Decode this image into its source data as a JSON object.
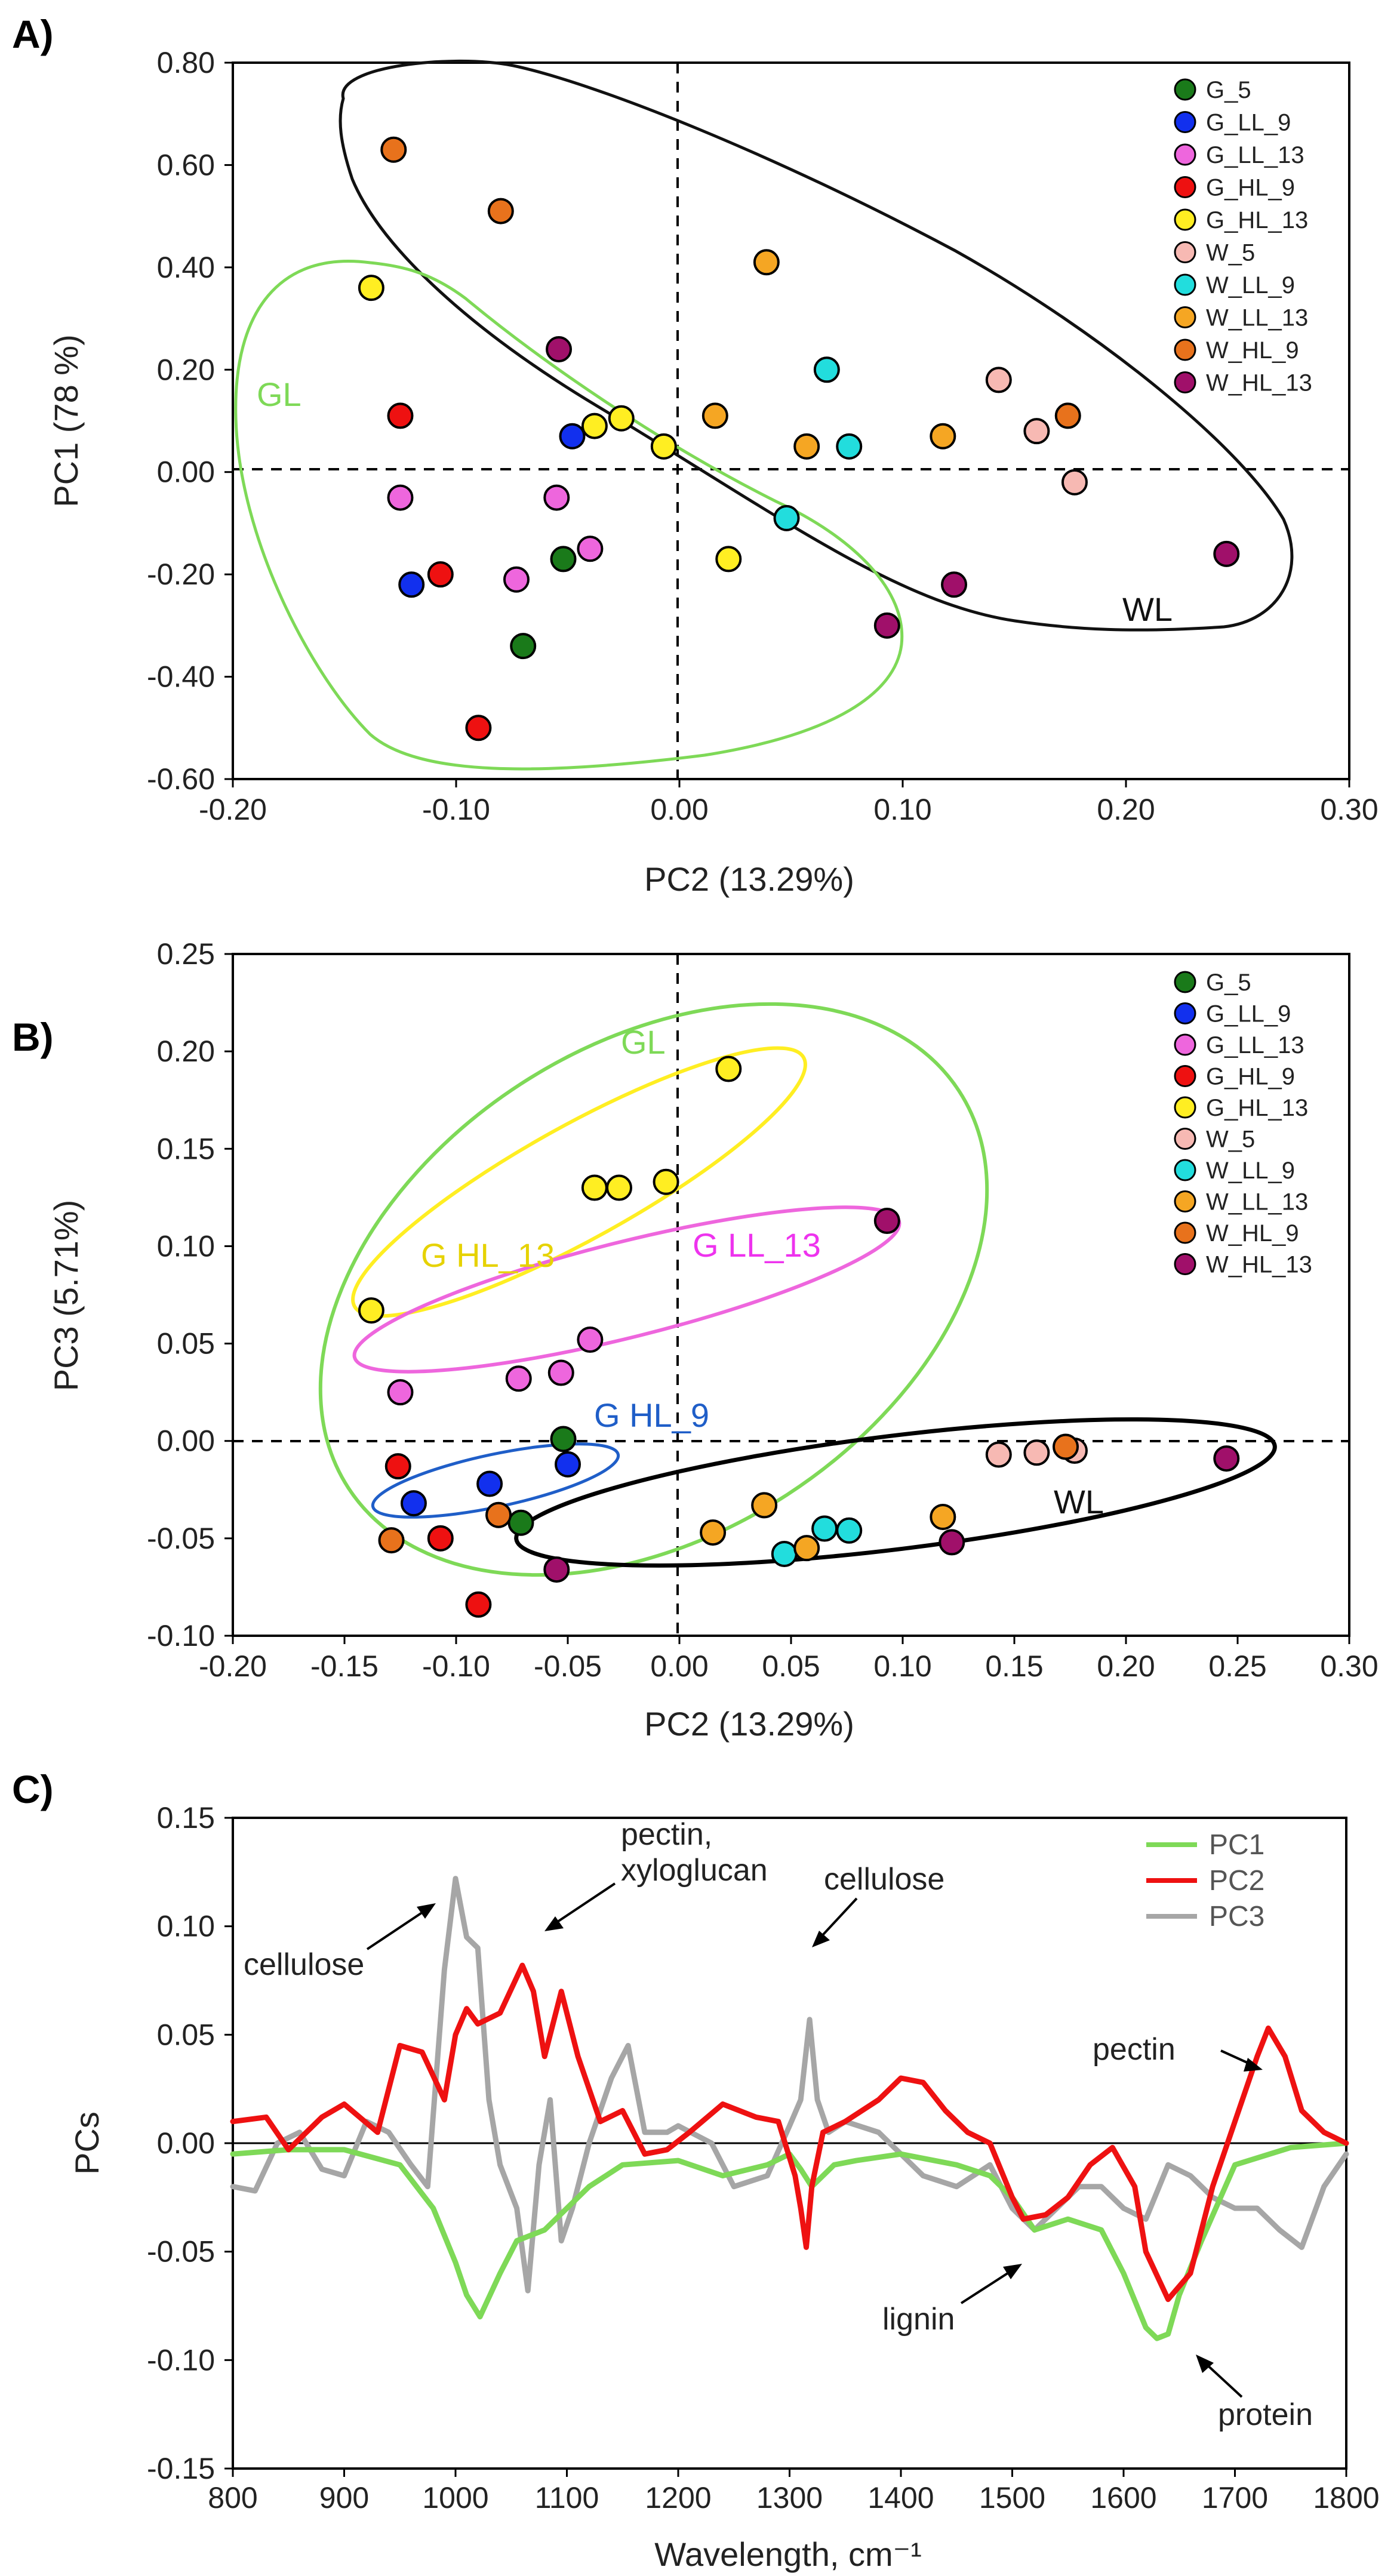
{
  "chart_data": [
    {
      "panel": "A)",
      "type": "scatter",
      "xlabel": "PC2 (13.29%)",
      "ylabel": "PC1 (78 %)",
      "xlim": [
        -0.2,
        0.3
      ],
      "ylim": [
        -0.6,
        0.8
      ],
      "xticks": [
        -0.2,
        -0.1,
        0.0,
        0.1,
        0.2,
        0.3
      ],
      "yticks": [
        -0.6,
        -0.4,
        -0.2,
        0.0,
        0.2,
        0.4,
        0.6,
        0.8
      ],
      "xtick_labels": [
        "-0.20",
        "-0.10",
        "0.00",
        "0.10",
        "0.20",
        "0.30"
      ],
      "ytick_labels": [
        "-0.60",
        "-0.40",
        "-0.20",
        "0.00",
        "0.20",
        "0.40",
        "0.60",
        "0.80"
      ],
      "legend_position": "top-right",
      "group_labels": [
        {
          "text": "GL",
          "color": "#7ed957"
        },
        {
          "text": "WL",
          "color": "#111111"
        }
      ],
      "series": [
        {
          "name": "G_5",
          "color": "#1a7a1a",
          "points": [
            [
              -0.052,
              -0.17
            ],
            [
              -0.07,
              -0.34
            ]
          ]
        },
        {
          "name": "G_LL_9",
          "color": "#1230ee",
          "points": [
            [
              -0.048,
              0.07
            ],
            [
              -0.12,
              -0.22
            ]
          ]
        },
        {
          "name": "G_LL_13",
          "color": "#ee66dd",
          "points": [
            [
              -0.125,
              -0.05
            ],
            [
              -0.055,
              -0.05
            ],
            [
              -0.04,
              -0.15
            ],
            [
              -0.073,
              -0.21
            ]
          ]
        },
        {
          "name": "G_HL_9",
          "color": "#ee1111",
          "points": [
            [
              -0.125,
              0.11
            ],
            [
              -0.107,
              -0.2
            ],
            [
              -0.09,
              -0.5
            ]
          ]
        },
        {
          "name": "G_HL_13",
          "color": "#ffee22",
          "points": [
            [
              -0.138,
              0.36
            ],
            [
              -0.038,
              0.09
            ],
            [
              -0.026,
              0.105
            ],
            [
              -0.007,
              0.05
            ],
            [
              0.022,
              -0.17
            ]
          ]
        },
        {
          "name": "W_5",
          "color": "#f7b9b3",
          "points": [
            [
              0.143,
              0.18
            ],
            [
              0.16,
              0.08
            ],
            [
              0.177,
              -0.02
            ]
          ]
        },
        {
          "name": "W_LL_9",
          "color": "#22dddd",
          "points": [
            [
              0.066,
              0.2
            ],
            [
              0.076,
              0.05
            ],
            [
              0.048,
              -0.09
            ]
          ]
        },
        {
          "name": "W_LL_13",
          "color": "#f5a623",
          "points": [
            [
              0.039,
              0.41
            ],
            [
              0.016,
              0.11
            ],
            [
              0.057,
              0.05
            ],
            [
              0.118,
              0.07
            ]
          ]
        },
        {
          "name": "W_HL_9",
          "color": "#e8721c",
          "points": [
            [
              -0.128,
              0.63
            ],
            [
              -0.08,
              0.51
            ],
            [
              0.174,
              0.11
            ]
          ]
        },
        {
          "name": "W_HL_13",
          "color": "#a0106a",
          "points": [
            [
              -0.054,
              0.24
            ],
            [
              0.123,
              -0.22
            ],
            [
              0.093,
              -0.3
            ],
            [
              0.245,
              -0.16
            ]
          ]
        }
      ]
    },
    {
      "panel": "B)",
      "type": "scatter",
      "xlabel": "PC2 (13.29%)",
      "ylabel": "PC3 (5.71%)",
      "xlim": [
        -0.2,
        0.3
      ],
      "ylim": [
        -0.1,
        0.25
      ],
      "xticks": [
        -0.2,
        -0.15,
        -0.1,
        -0.05,
        0.0,
        0.05,
        0.1,
        0.15,
        0.2,
        0.25,
        0.3
      ],
      "yticks": [
        -0.1,
        -0.05,
        0.0,
        0.05,
        0.1,
        0.15,
        0.2,
        0.25
      ],
      "xtick_labels": [
        "-0.20",
        "-0.15",
        "-0.10",
        "-0.05",
        "0.00",
        "0.05",
        "0.10",
        "0.15",
        "0.20",
        "0.25",
        "0.30"
      ],
      "ytick_labels": [
        "-0.10",
        "-0.05",
        "0.00",
        "0.05",
        "0.10",
        "0.15",
        "0.20",
        "0.25"
      ],
      "legend_position": "top-right",
      "group_labels": [
        {
          "text": "GL",
          "color": "#7ed957"
        },
        {
          "text": "G HL_13",
          "color": "#e6d200"
        },
        {
          "text": "G LL_13",
          "color": "#ee33ee"
        },
        {
          "text": "G HL_9",
          "color": "#1f5ec8"
        },
        {
          "text": "WL",
          "color": "#111111"
        }
      ],
      "series": [
        {
          "name": "G_5",
          "color": "#1a7a1a",
          "points": [
            [
              -0.052,
              0.001
            ],
            [
              -0.071,
              -0.042
            ]
          ]
        },
        {
          "name": "G_LL_9",
          "color": "#1230ee",
          "points": [
            [
              -0.05,
              -0.012
            ],
            [
              -0.085,
              -0.022
            ],
            [
              -0.119,
              -0.032
            ]
          ]
        },
        {
          "name": "G_LL_13",
          "color": "#ee66dd",
          "points": [
            [
              -0.125,
              0.025
            ],
            [
              -0.072,
              0.032
            ],
            [
              -0.053,
              0.035
            ],
            [
              -0.04,
              0.052
            ]
          ]
        },
        {
          "name": "G_HL_9",
          "color": "#ee1111",
          "points": [
            [
              -0.126,
              -0.013
            ],
            [
              -0.107,
              -0.05
            ],
            [
              -0.09,
              -0.084
            ]
          ]
        },
        {
          "name": "G_HL_13",
          "color": "#ffee22",
          "points": [
            [
              -0.138,
              0.067
            ],
            [
              -0.038,
              0.13
            ],
            [
              -0.027,
              0.13
            ],
            [
              -0.006,
              0.133
            ],
            [
              0.022,
              0.191
            ]
          ]
        },
        {
          "name": "W_5",
          "color": "#f7b9b3",
          "points": [
            [
              0.143,
              -0.007
            ],
            [
              0.16,
              -0.006
            ],
            [
              0.177,
              -0.005
            ]
          ]
        },
        {
          "name": "W_LL_9",
          "color": "#22dddd",
          "points": [
            [
              0.047,
              -0.058
            ],
            [
              0.065,
              -0.045
            ],
            [
              0.076,
              -0.046
            ]
          ]
        },
        {
          "name": "W_LL_13",
          "color": "#f5a623",
          "points": [
            [
              0.015,
              -0.047
            ],
            [
              0.038,
              -0.033
            ],
            [
              0.057,
              -0.055
            ],
            [
              0.118,
              -0.039
            ]
          ]
        },
        {
          "name": "W_HL_9",
          "color": "#e8721c",
          "points": [
            [
              -0.129,
              -0.051
            ],
            [
              -0.081,
              -0.038
            ],
            [
              0.173,
              -0.003
            ]
          ]
        },
        {
          "name": "W_HL_13",
          "color": "#a0106a",
          "points": [
            [
              -0.055,
              -0.066
            ],
            [
              0.122,
              -0.052
            ],
            [
              0.093,
              0.113
            ],
            [
              0.245,
              -0.009
            ]
          ]
        }
      ]
    },
    {
      "panel": "C)",
      "type": "line",
      "xlabel": "Wavelength, cm⁻¹",
      "ylabel": "PCs",
      "xlim": [
        800,
        1800
      ],
      "ylim": [
        -0.15,
        0.15
      ],
      "xticks": [
        800,
        900,
        1000,
        1100,
        1200,
        1300,
        1400,
        1500,
        1600,
        1700,
        1800
      ],
      "yticks": [
        -0.15,
        -0.1,
        -0.05,
        0.0,
        0.05,
        0.1,
        0.15
      ],
      "xtick_labels": [
        "800",
        "900",
        "1000",
        "1100",
        "1200",
        "1300",
        "1400",
        "1500",
        "1600",
        "1700",
        "1800"
      ],
      "ytick_labels": [
        "-0.15",
        "-0.10",
        "-0.05",
        "0.00",
        "0.05",
        "0.10",
        "0.15"
      ],
      "legend_position": "top-right",
      "annotations": [
        "cellulose",
        "pectin,",
        "xyloglucan",
        "cellulose",
        "pectin",
        "lignin",
        "protein"
      ],
      "series": [
        {
          "name": "PC1",
          "color": "#7ed957",
          "x": [
            800,
            850,
            900,
            950,
            980,
            1000,
            1010,
            1022,
            1040,
            1055,
            1070,
            1080,
            1100,
            1120,
            1150,
            1200,
            1240,
            1280,
            1300,
            1310,
            1320,
            1340,
            1360,
            1400,
            1450,
            1480,
            1500,
            1520,
            1550,
            1580,
            1600,
            1620,
            1630,
            1640,
            1650,
            1670,
            1700,
            1750,
            1800
          ],
          "y": [
            -0.005,
            -0.003,
            -0.003,
            -0.01,
            -0.03,
            -0.055,
            -0.07,
            -0.08,
            -0.06,
            -0.045,
            -0.042,
            -0.04,
            -0.03,
            -0.02,
            -0.01,
            -0.008,
            -0.015,
            -0.01,
            -0.005,
            -0.012,
            -0.02,
            -0.01,
            -0.008,
            -0.005,
            -0.01,
            -0.015,
            -0.025,
            -0.04,
            -0.035,
            -0.04,
            -0.06,
            -0.085,
            -0.09,
            -0.088,
            -0.07,
            -0.045,
            -0.01,
            -0.002,
            0.0
          ]
        },
        {
          "name": "PC2",
          "color": "#ee1111",
          "x": [
            800,
            830,
            850,
            880,
            900,
            930,
            950,
            970,
            990,
            1000,
            1010,
            1020,
            1040,
            1060,
            1070,
            1080,
            1095,
            1110,
            1130,
            1150,
            1170,
            1190,
            1210,
            1240,
            1270,
            1290,
            1305,
            1310,
            1315,
            1320,
            1330,
            1350,
            1380,
            1400,
            1420,
            1440,
            1460,
            1480,
            1500,
            1510,
            1530,
            1550,
            1570,
            1590,
            1610,
            1620,
            1640,
            1660,
            1680,
            1700,
            1720,
            1730,
            1745,
            1760,
            1780,
            1800
          ],
          "y": [
            0.01,
            0.012,
            -0.003,
            0.012,
            0.018,
            0.005,
            0.045,
            0.042,
            0.02,
            0.05,
            0.062,
            0.055,
            0.06,
            0.082,
            0.07,
            0.04,
            0.07,
            0.04,
            0.01,
            0.015,
            -0.005,
            -0.003,
            0.005,
            0.018,
            0.012,
            0.01,
            -0.015,
            -0.03,
            -0.048,
            -0.02,
            0.005,
            0.01,
            0.02,
            0.03,
            0.028,
            0.015,
            0.005,
            0.0,
            -0.025,
            -0.035,
            -0.033,
            -0.025,
            -0.01,
            -0.002,
            -0.02,
            -0.05,
            -0.072,
            -0.06,
            -0.02,
            0.01,
            0.04,
            0.053,
            0.04,
            0.015,
            0.005,
            0.0
          ]
        },
        {
          "name": "PC3",
          "color": "#a6a6a6",
          "x": [
            800,
            820,
            840,
            860,
            880,
            900,
            920,
            940,
            960,
            975,
            990,
            1000,
            1010,
            1020,
            1030,
            1040,
            1055,
            1065,
            1075,
            1085,
            1095,
            1105,
            1120,
            1140,
            1155,
            1170,
            1190,
            1200,
            1230,
            1250,
            1280,
            1300,
            1310,
            1318,
            1325,
            1335,
            1350,
            1380,
            1420,
            1450,
            1480,
            1500,
            1520,
            1540,
            1560,
            1580,
            1600,
            1620,
            1640,
            1660,
            1680,
            1700,
            1720,
            1740,
            1760,
            1780,
            1800
          ],
          "y": [
            -0.02,
            -0.022,
            0.0,
            0.005,
            -0.012,
            -0.015,
            0.01,
            0.005,
            -0.01,
            -0.02,
            0.08,
            0.122,
            0.095,
            0.09,
            0.02,
            -0.01,
            -0.03,
            -0.068,
            -0.01,
            0.02,
            -0.045,
            -0.03,
            0.0,
            0.03,
            0.045,
            0.005,
            0.005,
            0.008,
            0.0,
            -0.02,
            -0.015,
            0.008,
            0.02,
            0.057,
            0.02,
            0.005,
            0.01,
            0.005,
            -0.015,
            -0.02,
            -0.01,
            -0.03,
            -0.04,
            -0.03,
            -0.02,
            -0.02,
            -0.03,
            -0.035,
            -0.01,
            -0.015,
            -0.025,
            -0.03,
            -0.03,
            -0.04,
            -0.048,
            -0.02,
            -0.005
          ]
        }
      ]
    }
  ]
}
